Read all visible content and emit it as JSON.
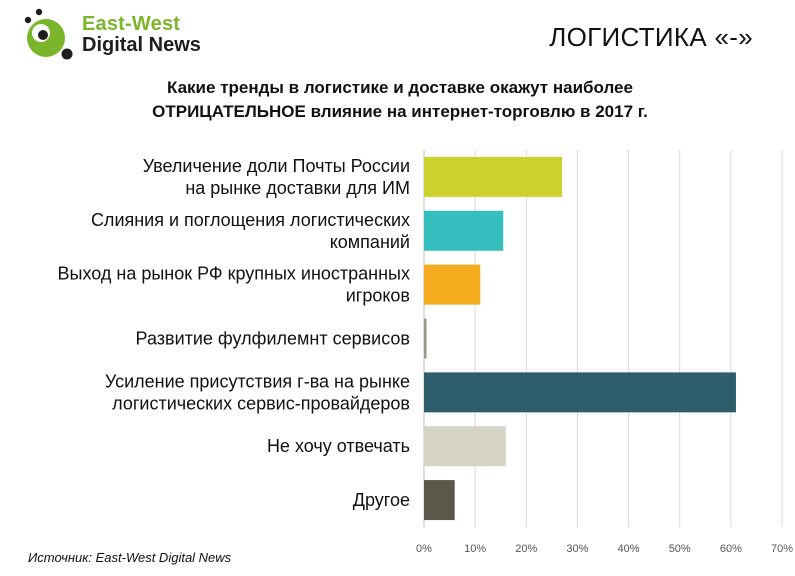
{
  "logo": {
    "line1": "East-West",
    "line2": "Digital News"
  },
  "header": {
    "section_title": "ЛОГИСТИКА «-»"
  },
  "question": {
    "line1": "Какие тренды в логистике и доставке окажут наиболее",
    "line2": "ОТРИЦАТЕЛЬНОЕ влияние на интернет-торговлю в 2017 г."
  },
  "source": {
    "text": "Источник:  East-West Digital News"
  },
  "chart_data": {
    "type": "bar",
    "orientation": "horizontal",
    "title": "",
    "xlabel": "",
    "ylabel": "",
    "categories": [
      [
        "Увеличение доли Почты России",
        "на рынке доставки для ИМ"
      ],
      [
        "Слияния и поглощения логистических",
        "компаний"
      ],
      [
        "Выход на рынок РФ крупных иностранных",
        "игроков"
      ],
      [
        "Развитие фулфилемнт сервисов"
      ],
      [
        "Усиление присутствия г-ва на рынке",
        "логистических сервис-провайдеров"
      ],
      [
        "Не хочу отвечать"
      ],
      [
        "Другое"
      ]
    ],
    "values": [
      27,
      15.5,
      11,
      0.5,
      61,
      16,
      6
    ],
    "colors": [
      "#cdd12c",
      "#36bfbf",
      "#f5ac1e",
      "#9a9a8c",
      "#2e5e6b",
      "#d4d3c6",
      "#595849"
    ],
    "xlim": [
      0,
      70
    ],
    "x_ticks": [
      "0%",
      "10%",
      "20%",
      "30%",
      "40%",
      "50%",
      "60%",
      "70%"
    ],
    "grid": "vertical"
  }
}
